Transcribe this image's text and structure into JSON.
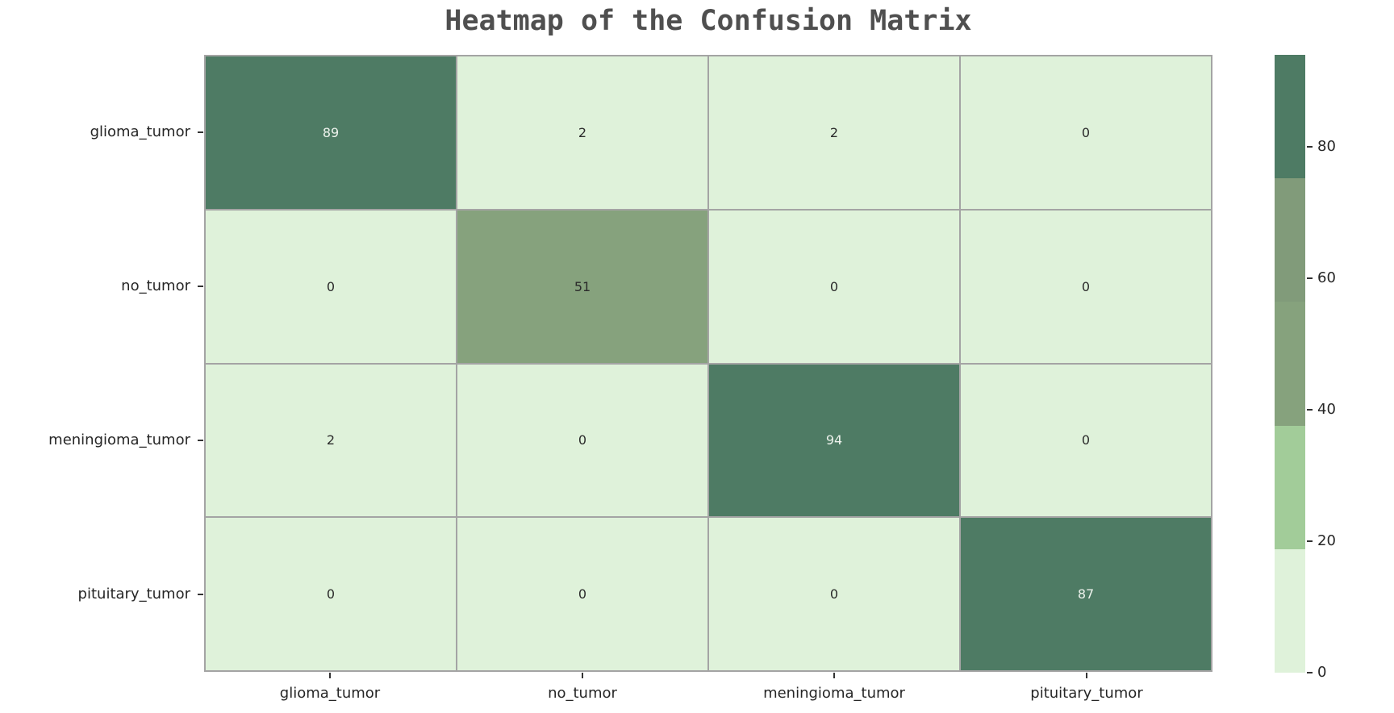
{
  "title": "Heatmap of the Confusion Matrix",
  "chart_data": {
    "type": "heatmap",
    "title": "Heatmap of the Confusion Matrix",
    "x_categories": [
      "glioma_tumor",
      "no_tumor",
      "meningioma_tumor",
      "pituitary_tumor"
    ],
    "y_categories": [
      "glioma_tumor",
      "no_tumor",
      "meningioma_tumor",
      "pituitary_tumor"
    ],
    "matrix": [
      [
        89,
        2,
        2,
        0
      ],
      [
        0,
        51,
        0,
        0
      ],
      [
        2,
        0,
        94,
        0
      ],
      [
        0,
        0,
        0,
        87
      ]
    ],
    "vmin": 0,
    "vmax": 94,
    "colorbar_ticks": [
      80,
      60,
      40,
      20,
      0
    ],
    "palette": [
      "#dff2da",
      "#a2cc99",
      "#86a27d",
      "#819b7a",
      "#4e7b64"
    ],
    "gridline_color": "#a4a4a4",
    "annotation_color_on_light": "#2b2b2b",
    "annotation_color_on_dark": "#edf2ec",
    "legend_position": "right",
    "colorbar_style": "discrete-5-segments"
  }
}
